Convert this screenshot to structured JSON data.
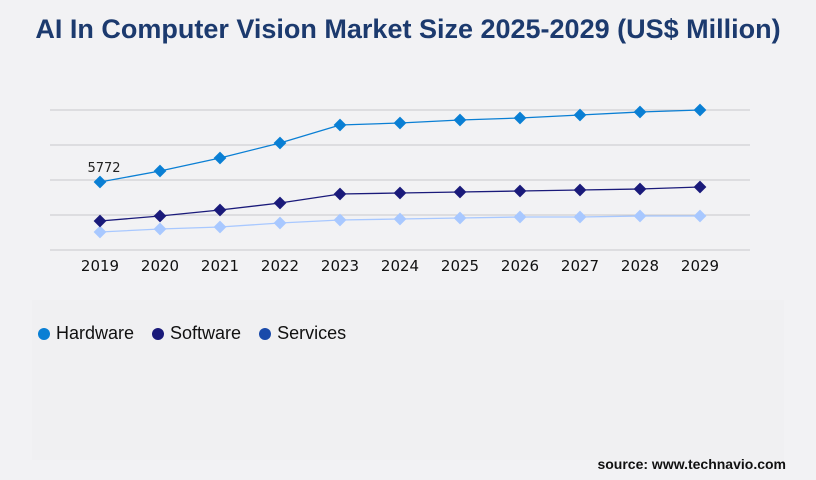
{
  "title": "AI In Computer Vision Market Size 2025-2029 (US$ Million)",
  "source": "source: www.technavio.com",
  "chart_data": {
    "type": "line",
    "title": "AI In Computer Vision Market Size 2025-2029 (US$ Million)",
    "x": [
      "2019",
      "2020",
      "2021",
      "2022",
      "2023",
      "2024",
      "2025",
      "2026",
      "2027",
      "2028",
      "2029"
    ],
    "ylim": [
      0,
      11884
    ],
    "grid": true,
    "legend_position": "bottom-left",
    "series": [
      {
        "name": "Hardware",
        "color": "#0a7fd4",
        "values": [
          5772,
          6706,
          7809,
          9082,
          10610,
          10780,
          11034,
          11204,
          11459,
          11714,
          11884
        ],
        "labels": {
          "0": "5772"
        }
      },
      {
        "name": "Software",
        "color": "#1a1a7a",
        "values": [
          2462,
          2886,
          3395,
          3989,
          4753,
          4838,
          4923,
          5008,
          5093,
          5178,
          5348
        ]
      },
      {
        "name": "Services",
        "color": "#a8c8ff",
        "legend_color": "#1a4aaa",
        "values": [
          1528,
          1782,
          1952,
          2292,
          2546,
          2631,
          2716,
          2801,
          2801,
          2886,
          2886
        ]
      }
    ]
  }
}
